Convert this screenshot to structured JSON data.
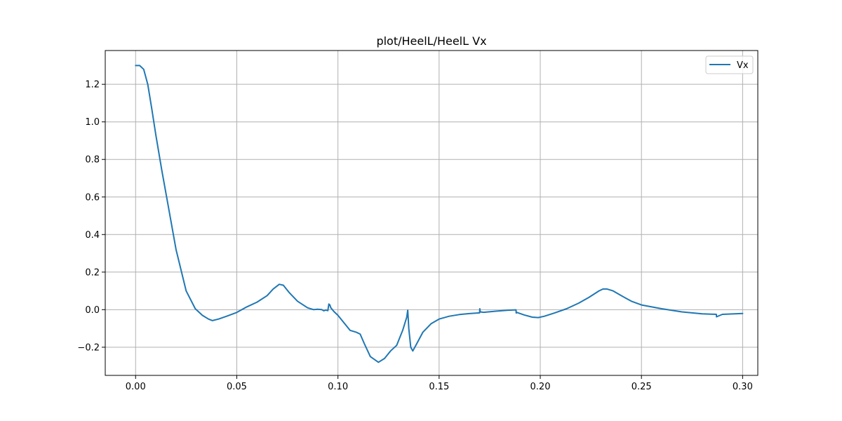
{
  "chart_data": {
    "type": "line",
    "title": "plot/HeelL/HeelL Vx",
    "xlabel": "",
    "ylabel": "",
    "xlim": [
      -0.015,
      0.3075
    ],
    "ylim": [
      -0.35,
      1.38
    ],
    "grid": true,
    "legend_position": "top-right",
    "x_ticks": [
      0.0,
      0.05,
      0.1,
      0.15,
      0.2,
      0.25,
      0.3
    ],
    "x_tick_labels": [
      "0.00",
      "0.05",
      "0.10",
      "0.15",
      "0.20",
      "0.25",
      "0.30"
    ],
    "y_ticks": [
      -0.2,
      0.0,
      0.2,
      0.4,
      0.6,
      0.8,
      1.0,
      1.2
    ],
    "y_tick_labels": [
      "−0.2",
      "0.0",
      "0.2",
      "0.4",
      "0.6",
      "0.8",
      "1.0",
      "1.2"
    ],
    "series": [
      {
        "name": "Vx",
        "color": "#1f77b4",
        "x": [
          0.0,
          0.002,
          0.004,
          0.006,
          0.008,
          0.01,
          0.013,
          0.016,
          0.02,
          0.025,
          0.0295,
          0.033,
          0.036,
          0.038,
          0.041,
          0.045,
          0.05,
          0.055,
          0.06,
          0.065,
          0.068,
          0.071,
          0.073,
          0.076,
          0.08,
          0.085,
          0.088,
          0.09,
          0.092,
          0.093,
          0.094,
          0.095,
          0.0955,
          0.096,
          0.0965,
          0.098,
          0.1,
          0.103,
          0.106,
          0.109,
          0.111,
          0.113,
          0.116,
          0.12,
          0.123,
          0.126,
          0.129,
          0.132,
          0.134,
          0.1345,
          0.135,
          0.136,
          0.137,
          0.139,
          0.142,
          0.146,
          0.15,
          0.155,
          0.16,
          0.165,
          0.17,
          0.1701,
          0.1703,
          0.172,
          0.178,
          0.184,
          0.188,
          0.1881,
          0.1885,
          0.192,
          0.196,
          0.199,
          0.202,
          0.207,
          0.213,
          0.219,
          0.224,
          0.229,
          0.231,
          0.233,
          0.236,
          0.24,
          0.245,
          0.25,
          0.26,
          0.27,
          0.28,
          0.287,
          0.2871,
          0.29,
          0.3
        ],
        "values": [
          1.3,
          1.3,
          1.28,
          1.2,
          1.07,
          0.93,
          0.74,
          0.56,
          0.32,
          0.1,
          0.005,
          -0.03,
          -0.05,
          -0.058,
          -0.05,
          -0.035,
          -0.015,
          0.015,
          0.04,
          0.075,
          0.11,
          0.135,
          0.13,
          0.09,
          0.045,
          0.01,
          0.0,
          0.002,
          0.0,
          -0.006,
          -0.002,
          -0.005,
          0.03,
          0.025,
          0.01,
          -0.01,
          -0.03,
          -0.07,
          -0.11,
          -0.12,
          -0.13,
          -0.18,
          -0.25,
          -0.28,
          -0.26,
          -0.22,
          -0.19,
          -0.11,
          -0.04,
          -0.003,
          -0.1,
          -0.2,
          -0.22,
          -0.18,
          -0.12,
          -0.075,
          -0.05,
          -0.035,
          -0.026,
          -0.021,
          -0.017,
          0.005,
          -0.012,
          -0.014,
          -0.008,
          -0.003,
          -0.001,
          -0.018,
          -0.015,
          -0.028,
          -0.04,
          -0.042,
          -0.035,
          -0.018,
          0.005,
          0.035,
          0.065,
          0.1,
          0.11,
          0.11,
          0.1,
          0.075,
          0.045,
          0.025,
          0.005,
          -0.012,
          -0.022,
          -0.025,
          -0.038,
          -0.025,
          -0.02
        ]
      }
    ]
  }
}
